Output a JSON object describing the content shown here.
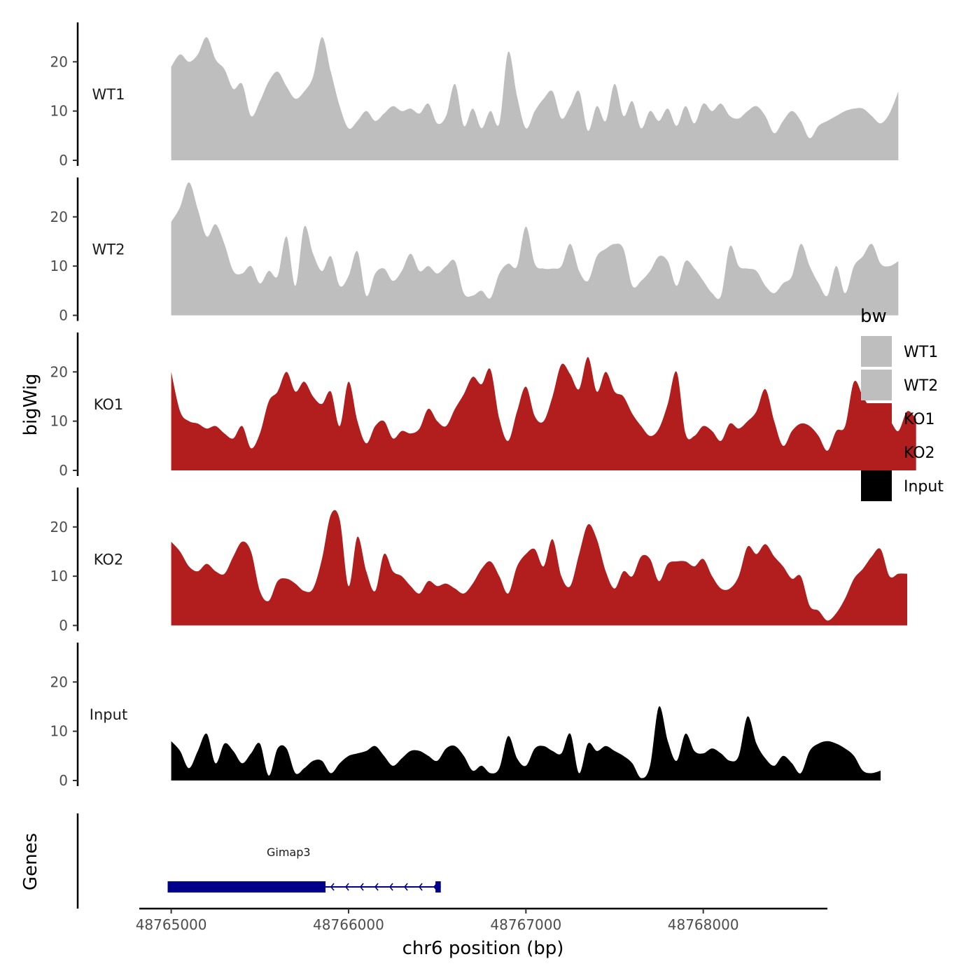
{
  "chart_data": {
    "type": "area",
    "title": "",
    "ylabel": "bigWig",
    "xlabel": "chr6 position (bp)",
    "xlim": [
      48764820,
      48768700
    ],
    "x_region": [
      48765000,
      48768500
    ],
    "xticks": [
      48765000,
      48766000,
      48767000,
      48768000
    ],
    "xtick_labels": [
      "48765000",
      "48766000",
      "48767000",
      "48768000"
    ],
    "ylim": [
      0,
      28
    ],
    "yticks": [
      0,
      10,
      20
    ],
    "ytick_labels": [
      "0",
      "10",
      "20"
    ],
    "legend": {
      "title": "bw",
      "position": "right",
      "entries": [
        {
          "label": "WT1",
          "color": "#bebebe"
        },
        {
          "label": "WT2",
          "color": "#bebebe"
        },
        {
          "label": "KO1",
          "color": "#b21e1e"
        },
        {
          "label": "KO2",
          "color": "#b21e1e"
        },
        {
          "label": "Input",
          "color": "#000000"
        }
      ]
    },
    "series": [
      {
        "name": "WT1",
        "color": "#bebebe",
        "start": 48765000,
        "step": 50,
        "values": [
          19,
          21.5,
          20,
          21.5,
          25,
          20.5,
          18.5,
          14.5,
          15.5,
          9,
          12,
          16,
          18,
          15,
          12.5,
          14,
          17,
          25,
          18,
          11,
          6.5,
          8,
          10,
          8,
          9.5,
          11,
          10,
          10.5,
          9.5,
          11.5,
          7.5,
          9,
          15.5,
          7,
          10.5,
          6.5,
          10,
          7.5,
          22,
          13,
          6.5,
          10,
          12.5,
          14,
          8.5,
          11,
          14,
          6,
          11,
          8,
          15.5,
          9,
          12,
          6.5,
          10,
          8,
          10.5,
          7,
          11,
          7.5,
          11.5,
          10,
          11.5,
          9,
          8.5,
          10,
          11,
          9,
          5.5,
          8,
          10,
          8,
          4.5,
          7,
          8,
          9,
          10,
          10.5,
          10.5,
          9,
          7.5,
          9.5,
          14
        ]
      },
      {
        "name": "WT2",
        "color": "#bebebe",
        "start": 48765000,
        "step": 50,
        "values": [
          19,
          22,
          27,
          21.5,
          16,
          18.5,
          14.5,
          9,
          8.5,
          10,
          6.5,
          9,
          8,
          16,
          6,
          18,
          12.5,
          9,
          12,
          6,
          8,
          13,
          4,
          8.5,
          9.5,
          7,
          9,
          12.5,
          9,
          10,
          8.5,
          10,
          11,
          4.5,
          4,
          5,
          3.5,
          8.5,
          10.5,
          10,
          18,
          10.5,
          9.5,
          9.5,
          10,
          14.5,
          9,
          7,
          12,
          13.5,
          14.5,
          13.5,
          6,
          7,
          9,
          12,
          11,
          6,
          11,
          9.5,
          7,
          4.5,
          4,
          14,
          10,
          9.5,
          9,
          6,
          4.5,
          6.5,
          8,
          14.5,
          10,
          6.5,
          4,
          10,
          4.5,
          10,
          12,
          14.5,
          10.5,
          10,
          11
        ]
      },
      {
        "name": "KO1",
        "color": "#b21e1e",
        "start": 48765000,
        "step": 50,
        "values": [
          20,
          12,
          10,
          9.5,
          8.5,
          9,
          7.5,
          6.5,
          9,
          4.5,
          7.5,
          14,
          16,
          20,
          16,
          18,
          15,
          13.5,
          16,
          9,
          18,
          10,
          5.5,
          9,
          10,
          6.5,
          8,
          7.5,
          8.5,
          12.5,
          10,
          9,
          12.5,
          15.5,
          19,
          17.5,
          20.5,
          10.5,
          6,
          12,
          17,
          11,
          10,
          15,
          21.5,
          19.5,
          16.5,
          23,
          16,
          20,
          16,
          15,
          11.5,
          9,
          7,
          8.5,
          13.5,
          20,
          7.5,
          7,
          9,
          8,
          6,
          9.5,
          8.5,
          10,
          12,
          16.5,
          10,
          5,
          8,
          9.5,
          9,
          7,
          4,
          8,
          9,
          18,
          15,
          12,
          8.5,
          10,
          8,
          12,
          10.5
        ]
      },
      {
        "name": "KO2",
        "color": "#b21e1e",
        "start": 48765000,
        "step": 50,
        "values": [
          17,
          15,
          12,
          11,
          12.5,
          11,
          10.5,
          14,
          17,
          15,
          7,
          5,
          9,
          9.5,
          8.5,
          7,
          7.5,
          13.5,
          22.5,
          21.5,
          8,
          18,
          11,
          7,
          14.5,
          11,
          10,
          8,
          6.5,
          9,
          8,
          8.5,
          7.5,
          6.5,
          8.5,
          11.5,
          13,
          10,
          6.5,
          12,
          14.5,
          15.5,
          12,
          17.5,
          10,
          8,
          14.5,
          20.5,
          17.5,
          11,
          7.5,
          11,
          10,
          14,
          13.5,
          9,
          12.5,
          13,
          13,
          12,
          13.5,
          10,
          7.5,
          7.5,
          10,
          16,
          14.5,
          16.5,
          14,
          12,
          9.5,
          10,
          4,
          3,
          1,
          2.5,
          5.5,
          9.5,
          11.5,
          14,
          15.5,
          10,
          10.5,
          10.5
        ]
      },
      {
        "name": "Input",
        "color": "#000000",
        "start": 48765000,
        "step": 50,
        "values": [
          8,
          6,
          2.5,
          6,
          9.5,
          3.5,
          7.5,
          6,
          3.5,
          5.5,
          7.5,
          1,
          6.5,
          6.5,
          1.5,
          2.5,
          4,
          4,
          1.5,
          3.5,
          5,
          5.5,
          6,
          7,
          5,
          3,
          4.5,
          6,
          6,
          5,
          4,
          6.5,
          7,
          5,
          2,
          3,
          1.5,
          2.5,
          9,
          4.5,
          3,
          6.5,
          7,
          6,
          5.5,
          9.5,
          1.5,
          7.5,
          6,
          7,
          6,
          5,
          3.5,
          0.5,
          3,
          15,
          8,
          4,
          9.5,
          6,
          5.5,
          6.5,
          5.5,
          4,
          5,
          13,
          7.5,
          4.5,
          3,
          5,
          3.5,
          1.5,
          6,
          7.5,
          8,
          7.5,
          6.5,
          5,
          2,
          1.5,
          2
        ]
      }
    ],
    "genes": [
      {
        "name": "Gimap3",
        "strand": "-",
        "start": 48764980,
        "end": 48766520,
        "exons": [
          [
            48764980,
            48765870
          ],
          [
            48766490,
            48766520
          ]
        ]
      }
    ],
    "genes_track_label": "Genes"
  }
}
